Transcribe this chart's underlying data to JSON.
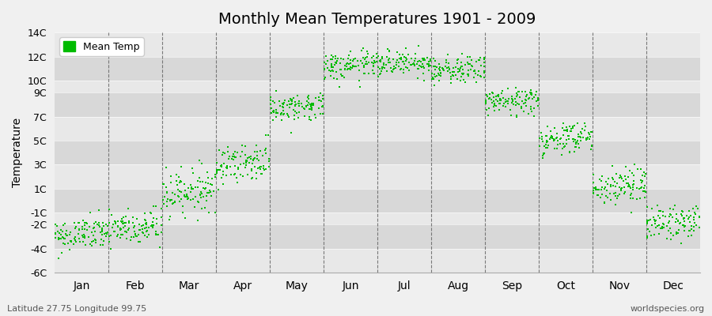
{
  "title": "Monthly Mean Temperatures 1901 - 2009",
  "ylabel": "Temperature",
  "subtitle_left": "Latitude 27.75 Longitude 99.75",
  "subtitle_right": "worldspecies.org",
  "dot_color": "#00BB00",
  "bg_color": "#f0f0f0",
  "panel_color_light": "#e8e8e8",
  "panel_color_dark": "#d8d8d8",
  "legend_label": "Mean Temp",
  "ylim": [
    -6,
    14
  ],
  "yticks": [
    -6,
    -4,
    -2,
    -1,
    1,
    3,
    5,
    7,
    9,
    10,
    12,
    14
  ],
  "ytick_labels": [
    "-6C",
    "-4C",
    "-2C",
    "-1C",
    "1C",
    "3C",
    "5C",
    "7C",
    "9C",
    "10C",
    "12C",
    "14C"
  ],
  "months": [
    "Jan",
    "Feb",
    "Mar",
    "Apr",
    "May",
    "Jun",
    "Jul",
    "Aug",
    "Sep",
    "Oct",
    "Nov",
    "Dec"
  ],
  "month_mean_temps": [
    -2.8,
    -2.3,
    0.8,
    3.2,
    7.8,
    11.2,
    11.5,
    10.8,
    8.3,
    5.2,
    1.2,
    -1.8
  ],
  "month_std_devs": [
    0.7,
    0.8,
    0.9,
    0.8,
    0.6,
    0.6,
    0.55,
    0.55,
    0.6,
    0.7,
    0.8,
    0.7
  ],
  "month_trend": [
    0.3,
    0.3,
    0.4,
    0.4,
    0.3,
    0.2,
    0.2,
    0.2,
    0.3,
    0.4,
    0.4,
    0.3
  ],
  "n_years": 109,
  "random_seed": 42,
  "dot_size": 4,
  "font_size_title": 14,
  "font_size_axis": 10,
  "font_size_tick": 9,
  "font_size_legend": 9,
  "font_size_subtitle": 8
}
